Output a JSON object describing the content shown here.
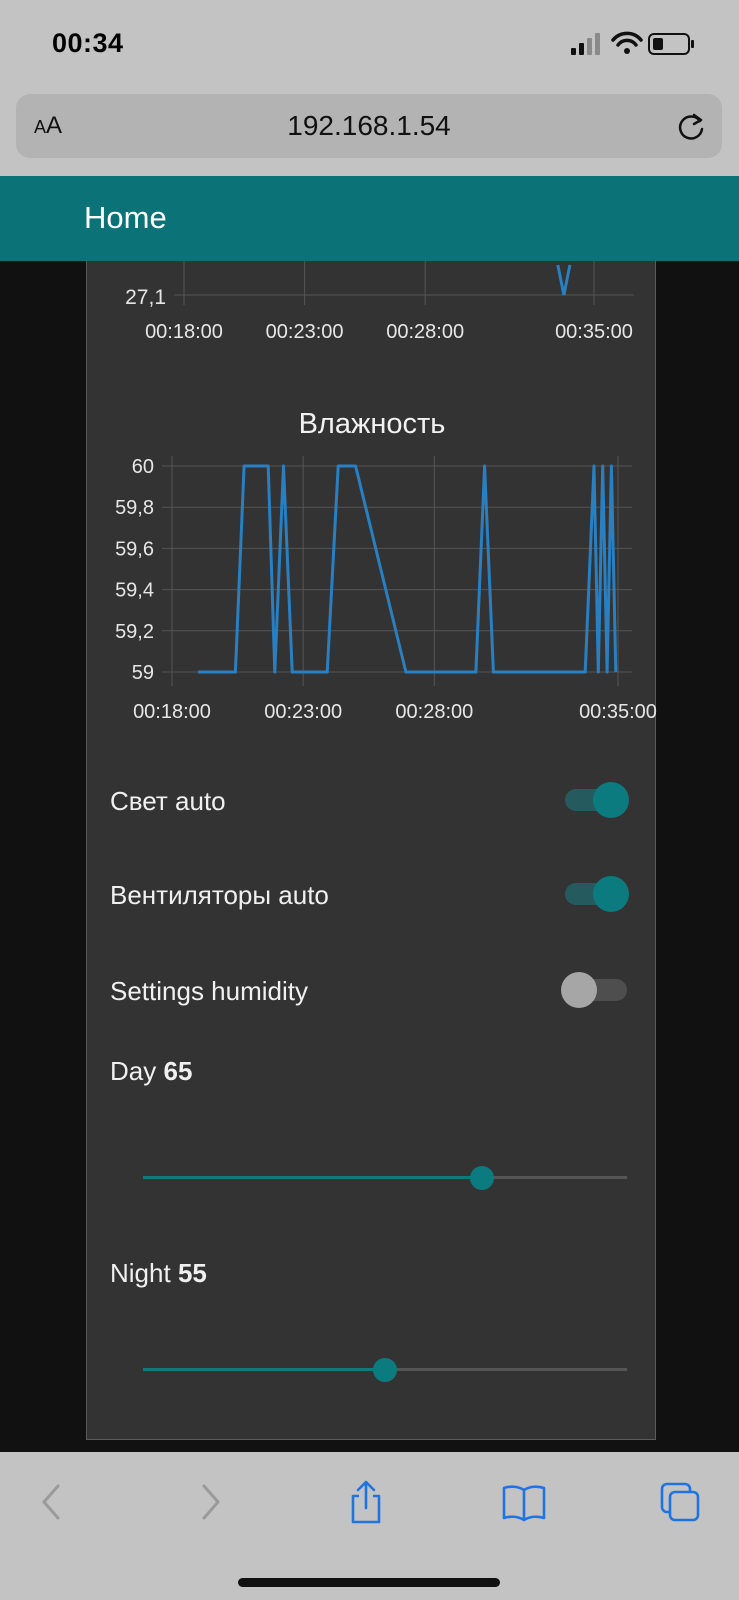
{
  "status_bar": {
    "time": "00:34"
  },
  "browser": {
    "aa_label_small": "A",
    "aa_label_large": "A",
    "url": "192.168.1.54"
  },
  "header": {
    "title": "Home"
  },
  "temperature_chart": {
    "y_tick_label": "27,1",
    "x_ticks": [
      "00:18:00",
      "00:23:00",
      "00:28:00",
      "00:35:00"
    ]
  },
  "humidity_chart": {
    "title": "Влажность",
    "y_ticks": [
      "60",
      "59,8",
      "59,6",
      "59,4",
      "59,2",
      "59"
    ],
    "x_ticks": [
      "00:18:00",
      "00:23:00",
      "00:28:00",
      "00:35:00"
    ]
  },
  "chart_data": [
    {
      "type": "line",
      "title": "",
      "x": [
        "00:33:30",
        "00:33:45",
        "00:34:00"
      ],
      "series": [
        {
          "values": [
            27.6,
            27.1,
            27.6
          ]
        }
      ],
      "ylabel": "",
      "y_visible_tick": 27.1,
      "x_ticks": [
        "00:18:00",
        "00:23:00",
        "00:28:00",
        "00:35:00"
      ],
      "color": "#2a7fc0",
      "grid": true
    },
    {
      "type": "line",
      "title": "Влажность",
      "x": [
        "00:19:00",
        "00:20:25",
        "00:20:45",
        "00:21:40",
        "00:21:55",
        "00:22:15",
        "00:22:35",
        "00:23:55",
        "00:24:20",
        "00:25:00",
        "00:26:55",
        "00:29:35",
        "00:29:55",
        "00:30:15",
        "00:33:45",
        "00:34:05",
        "00:34:15",
        "00:34:25",
        "00:34:35",
        "00:34:45",
        "00:34:55"
      ],
      "series": [
        {
          "values": [
            59,
            59,
            60,
            60,
            59,
            60,
            59,
            59,
            60,
            60,
            59,
            59,
            60,
            59,
            59,
            60,
            59,
            60,
            59,
            60,
            59
          ]
        }
      ],
      "ylim": [
        59,
        60
      ],
      "y_ticks": [
        59,
        59.2,
        59.4,
        59.6,
        59.8,
        60
      ],
      "x_ticks": [
        "00:18:00",
        "00:23:00",
        "00:28:00",
        "00:35:00"
      ],
      "color": "#2a7fc0",
      "grid": true
    }
  ],
  "controls": {
    "light_auto": {
      "label": "Свет auto",
      "on": true
    },
    "fans_auto": {
      "label": "Вентиляторы auto",
      "on": true
    },
    "settings_humidity": {
      "label": "Settings humidity",
      "on": false
    },
    "day": {
      "label": "Day",
      "value": "65",
      "level_fraction": 0.7
    },
    "night": {
      "label": "Night",
      "value": "55",
      "level_fraction": 0.5
    }
  },
  "colors": {
    "accent": "#0b7277",
    "card_bg": "#333333",
    "line": "#2a7fc0"
  }
}
